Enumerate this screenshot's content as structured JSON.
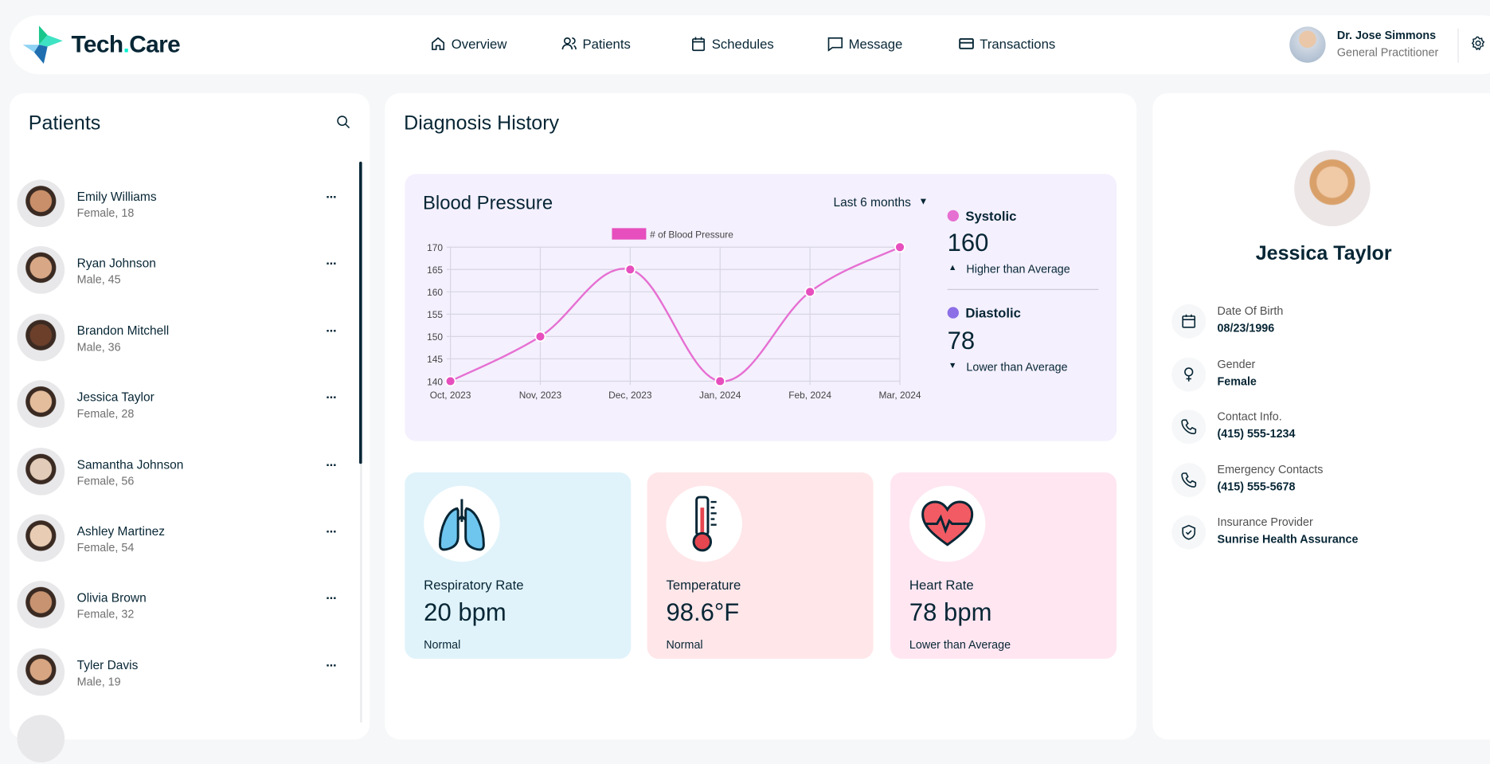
{
  "header": {
    "brand_main": "Tech",
    "brand_dot": ".",
    "brand_tail": "Care",
    "nav": [
      {
        "label": "Overview",
        "icon": "home-icon"
      },
      {
        "label": "Patients",
        "icon": "users-icon"
      },
      {
        "label": "Schedules",
        "icon": "calendar-icon"
      },
      {
        "label": "Message",
        "icon": "chat-icon"
      },
      {
        "label": "Transactions",
        "icon": "credit-card-icon"
      }
    ],
    "user": {
      "name": "Dr. Jose Simmons",
      "role": "General Practitioner"
    }
  },
  "patients": {
    "title": "Patients",
    "list": [
      {
        "name": "Emily Williams",
        "info": "Female, 18"
      },
      {
        "name": "Ryan Johnson",
        "info": "Male, 45"
      },
      {
        "name": "Brandon Mitchell",
        "info": "Male, 36"
      },
      {
        "name": "Jessica Taylor",
        "info": "Female, 28"
      },
      {
        "name": "Samantha Johnson",
        "info": "Female, 56"
      },
      {
        "name": "Ashley Martinez",
        "info": "Female, 54"
      },
      {
        "name": "Olivia Brown",
        "info": "Female, 32"
      },
      {
        "name": "Tyler Davis",
        "info": "Male, 19"
      }
    ],
    "more": "···"
  },
  "diagnosis": {
    "title": "Diagnosis History",
    "bp_title": "Blood Pressure",
    "range_select": "Last 6 months",
    "systolic": {
      "label": "Systolic",
      "value": "160",
      "status": "Higher than Average",
      "color": "#e66fd2"
    },
    "diastolic": {
      "label": "Diastolic",
      "value": "78",
      "status": "Lower than Average",
      "color": "#8c6fe6"
    },
    "vitals": [
      {
        "label": "Respiratory Rate",
        "value": "20 bpm",
        "status": "Normal",
        "bg": "#e0f3fa",
        "icon": "lungs-icon"
      },
      {
        "label": "Temperature",
        "value": "98.6°F",
        "status": "Normal",
        "bg": "#ffe6e9",
        "icon": "thermometer-icon"
      },
      {
        "label": "Heart Rate",
        "value": "78 bpm",
        "status": "Lower than Average",
        "bg": "#ffe6f1",
        "icon": "heart-icon"
      }
    ]
  },
  "chart_data": {
    "type": "line",
    "legend": "# of Blood Pressure",
    "categories": [
      "Oct, 2023",
      "Nov, 2023",
      "Dec, 2023",
      "Jan, 2024",
      "Feb, 2024",
      "Mar, 2024"
    ],
    "series": [
      {
        "name": "# of Blood Pressure",
        "values": [
          140,
          150,
          165,
          140,
          160,
          170
        ],
        "color": "#e66fd2"
      }
    ],
    "ylim": [
      140,
      170
    ],
    "yticks": [
      "140",
      "145",
      "150",
      "155",
      "160",
      "165",
      "170"
    ],
    "grid": true,
    "legend_position": "top"
  },
  "profile": {
    "name": "Jessica Taylor",
    "fields": [
      {
        "label": "Date Of Birth",
        "value": "08/23/1996",
        "icon": "calendar-icon"
      },
      {
        "label": "Gender",
        "value": "Female",
        "icon": "female-icon"
      },
      {
        "label": "Contact Info.",
        "value": "(415) 555-1234",
        "icon": "phone-icon"
      },
      {
        "label": "Emergency Contacts",
        "value": "(415) 555-5678",
        "icon": "phone-icon"
      },
      {
        "label": "Insurance Provider",
        "value": "Sunrise Health Assurance",
        "icon": "shield-icon"
      }
    ]
  }
}
